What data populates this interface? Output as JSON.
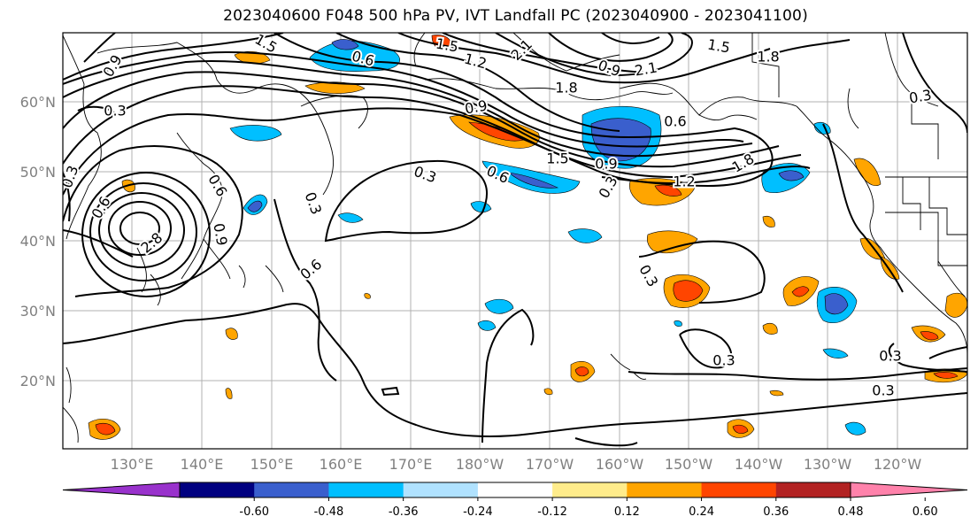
{
  "title": "2023040600 F048 500 hPa PV, IVT Landfall PC (2023040900 - 2023041100)",
  "lat_labels": [
    "60°N",
    "50°N",
    "40°N",
    "30°N",
    "20°N"
  ],
  "lon_labels": [
    "130°E",
    "140°E",
    "150°E",
    "160°E",
    "170°E",
    "180°W",
    "170°W",
    "160°W",
    "150°W",
    "140°W",
    "130°W",
    "120°W"
  ],
  "contour_labels": [
    {
      "text": "0.9",
      "a": -60
    },
    {
      "text": "0.3",
      "a": 0
    },
    {
      "text": "1.5",
      "a": 30
    },
    {
      "text": "0.6",
      "a": 15
    },
    {
      "text": "1.5",
      "a": 10
    },
    {
      "text": "1.2",
      "a": 15
    },
    {
      "text": "2.1",
      "a": -45
    },
    {
      "text": "0.9",
      "a": -10
    },
    {
      "text": "1.8",
      "a": 0
    },
    {
      "text": "1.5",
      "a": 0
    },
    {
      "text": "0.9",
      "a": 0
    },
    {
      "text": "0.3",
      "a": -60
    },
    {
      "text": "0.9",
      "a": 20
    },
    {
      "text": "0.6",
      "a": 0
    },
    {
      "text": "1.5",
      "a": 10
    },
    {
      "text": "1.8",
      "a": 0
    },
    {
      "text": "2.1",
      "a": -10
    },
    {
      "text": "1.2",
      "a": 0
    },
    {
      "text": "1.8",
      "a": -30
    },
    {
      "text": "0.6",
      "a": 25
    },
    {
      "text": "0.3",
      "a": 20
    },
    {
      "text": "0.3",
      "a": 70
    },
    {
      "text": "0.6",
      "a": -40
    },
    {
      "text": "0.6",
      "a": 60
    },
    {
      "text": "0.9",
      "a": 80
    },
    {
      "text": "2.8",
      "a": -40
    },
    {
      "text": "0.3",
      "a": -70
    },
    {
      "text": "0.6",
      "a": -60
    },
    {
      "text": "0.3",
      "a": 60
    },
    {
      "text": "0.3",
      "a": 0
    },
    {
      "text": "0.3",
      "a": 0
    },
    {
      "text": "0.3",
      "a": 0
    },
    {
      "text": "0.3",
      "a": -10
    }
  ],
  "colorbar": {
    "colors": [
      "#9932cc",
      "#000080",
      "#3a5fcd",
      "#00bfff",
      "#b0e2ff",
      "#ffffff",
      "#ffec8b",
      "#ffa500",
      "#ff4500",
      "#b22222",
      "#ff82ab"
    ],
    "ticks": [
      "-0.60",
      "-0.48",
      "-0.36",
      "-0.24",
      "-0.12",
      "0.12",
      "0.24",
      "0.36",
      "0.48",
      "0.60"
    ]
  }
}
